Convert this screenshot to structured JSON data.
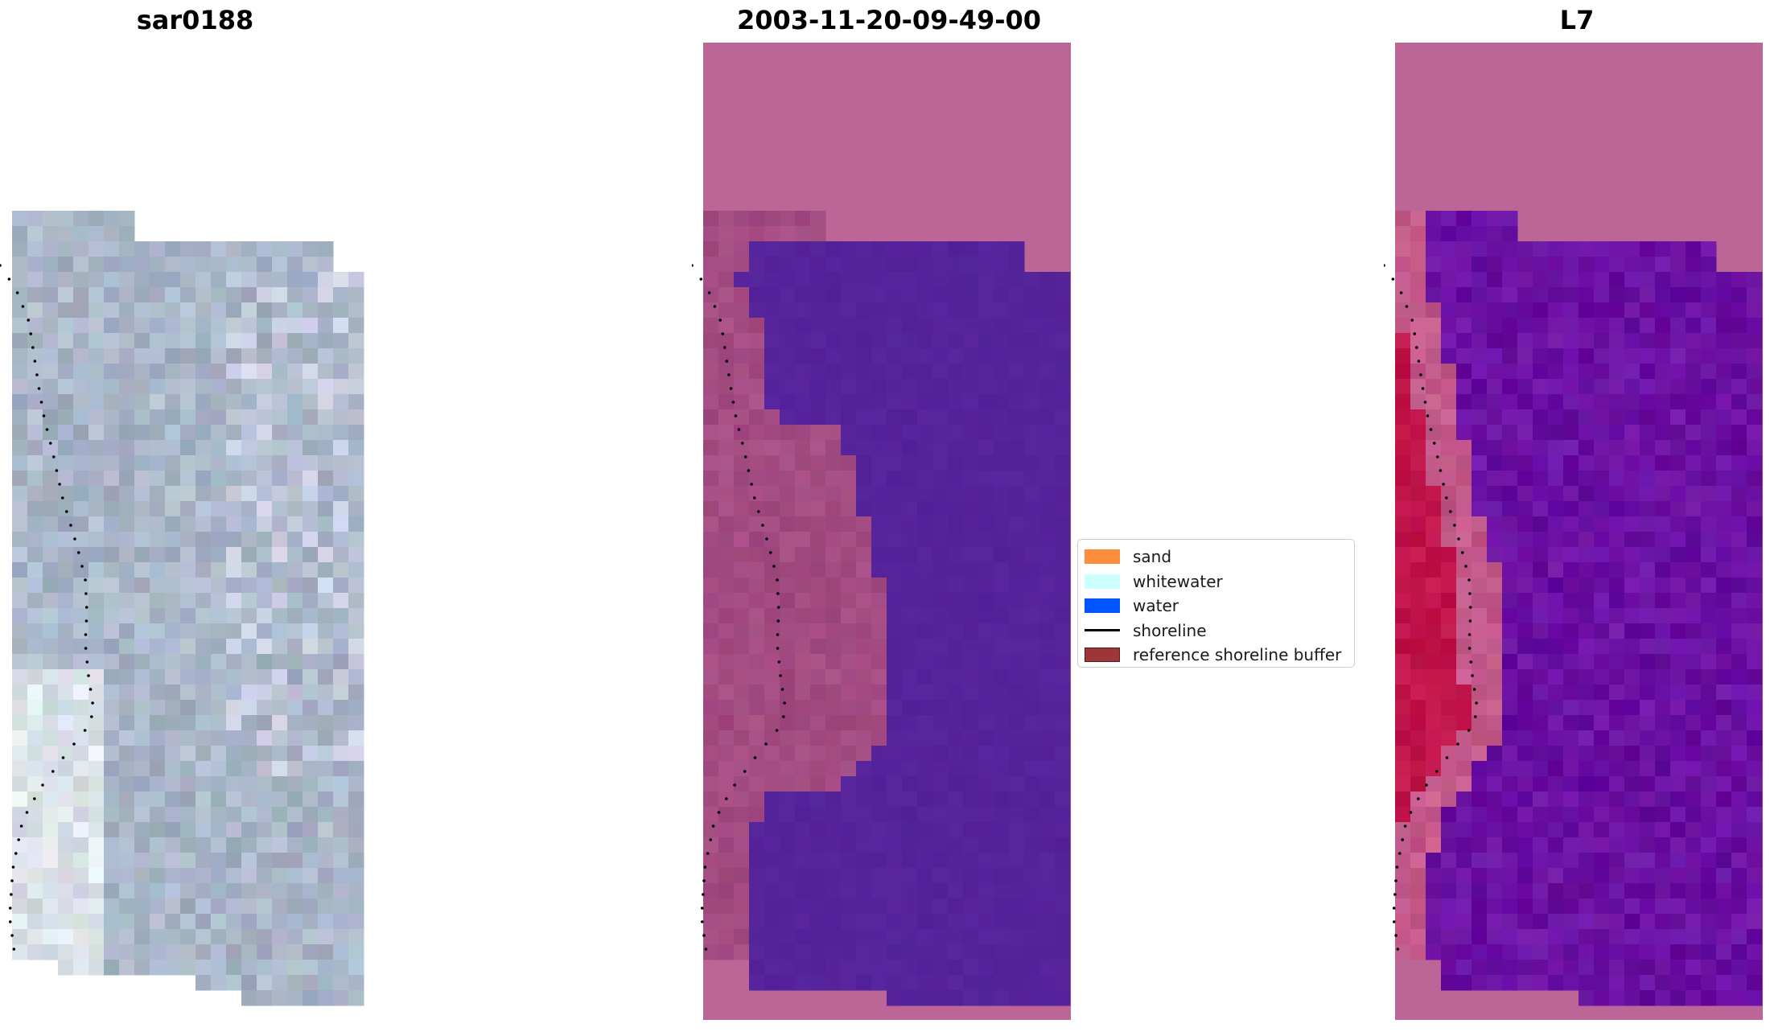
{
  "panels": [
    {
      "title": "sar0188"
    },
    {
      "title": "2003-11-20-09-49-00"
    },
    {
      "title": "L7"
    }
  ],
  "legend": {
    "items": [
      {
        "label": "sand",
        "color": "#fc8d3d",
        "kind": "patch"
      },
      {
        "label": "whitewater",
        "color": "#ccfffd",
        "kind": "patch"
      },
      {
        "label": "water",
        "color": "#0055ff",
        "kind": "patch"
      },
      {
        "label": "shoreline",
        "color": "#000000",
        "kind": "line"
      },
      {
        "label": "reference shoreline buffer",
        "color": "#9e3538",
        "kind": "patch",
        "edge": "#5a1a1c"
      }
    ]
  },
  "colors": {
    "rgb_base": "#a9b6c8",
    "classified_bg": "#bb6696",
    "classified_land": "#a34b82",
    "classified_water": "#55239a",
    "mndwi_bg": "#bb6696",
    "mndwi_land": "#c0144a",
    "mndwi_water": "#6a10a3",
    "shoreline_dots": "#000000"
  }
}
